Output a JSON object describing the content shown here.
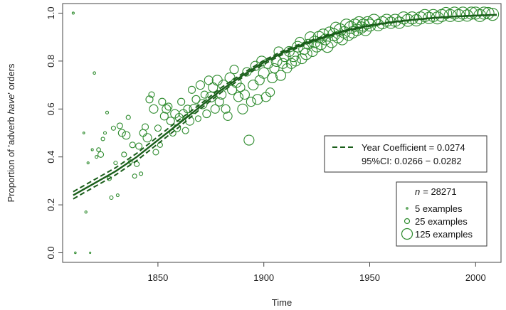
{
  "chart_data": {
    "type": "scatter",
    "xlabel": "Time",
    "ylabel_parts": [
      "Proportion of 'adverb ",
      "have",
      "' orders"
    ],
    "xlim": [
      1805,
      2012
    ],
    "ylim": [
      -0.04,
      1.04
    ],
    "xticks": [
      1850,
      1900,
      1950,
      2000
    ],
    "yticks": [
      0.0,
      0.2,
      0.4,
      0.6,
      0.8,
      1.0
    ],
    "ytick_labels": [
      "0.0",
      "0.2",
      "0.4",
      "0.6",
      "0.8",
      "1.0"
    ],
    "grid": false,
    "color": "#2e8b2e",
    "fit_color": "#1a5e1a",
    "fit": {
      "name": "fit",
      "x": [
        1810,
        1820,
        1830,
        1840,
        1850,
        1860,
        1870,
        1880,
        1890,
        1900,
        1910,
        1920,
        1930,
        1940,
        1950,
        1960,
        1970,
        1980,
        1990,
        2000,
        2010
      ],
      "y": [
        0.24,
        0.29,
        0.34,
        0.4,
        0.47,
        0.54,
        0.61,
        0.68,
        0.74,
        0.795,
        0.84,
        0.875,
        0.905,
        0.93,
        0.948,
        0.962,
        0.972,
        0.98,
        0.986,
        0.99,
        0.993
      ],
      "lower": [
        0.225,
        0.275,
        0.325,
        0.385,
        0.455,
        0.525,
        0.6,
        0.67,
        0.732,
        0.787,
        0.833,
        0.87,
        0.901,
        0.927,
        0.946,
        0.96,
        0.971,
        0.979,
        0.985,
        0.989,
        0.992
      ],
      "upper": [
        0.255,
        0.305,
        0.355,
        0.415,
        0.485,
        0.555,
        0.62,
        0.69,
        0.748,
        0.803,
        0.847,
        0.88,
        0.909,
        0.933,
        0.95,
        0.964,
        0.973,
        0.981,
        0.987,
        0.991,
        0.994
      ]
    },
    "legend_fit": {
      "label": "Year Coefficient = 0.0274",
      "ci": "95%CI:  0.0266 − 0.0282"
    },
    "legend_size": {
      "n_label": "n",
      "n_value": "=  28271",
      "items": [
        {
          "label": "5 examples",
          "r": 1.2
        },
        {
          "label": "25 examples",
          "r": 3.5
        },
        {
          "label": "125 examples",
          "r": 7.5
        }
      ]
    },
    "points": [
      [
        1810,
        1.0,
        1.5
      ],
      [
        1811,
        0.0,
        1.2
      ],
      [
        1815,
        0.5,
        1.3
      ],
      [
        1816,
        0.17,
        1.6
      ],
      [
        1817,
        0.375,
        1.5
      ],
      [
        1818,
        0.0,
        1.0
      ],
      [
        1819,
        0.43,
        1.5
      ],
      [
        1820,
        0.75,
        1.8
      ],
      [
        1821,
        0.4,
        2.0
      ],
      [
        1822,
        0.43,
        2.8
      ],
      [
        1823,
        0.41,
        4.0
      ],
      [
        1824,
        0.475,
        2.5
      ],
      [
        1825,
        0.5,
        2.0
      ],
      [
        1826,
        0.585,
        2.0
      ],
      [
        1827,
        0.31,
        3.0
      ],
      [
        1828,
        0.23,
        2.5
      ],
      [
        1829,
        0.52,
        3.0
      ],
      [
        1830,
        0.375,
        2.5
      ],
      [
        1831,
        0.24,
        2.0
      ],
      [
        1832,
        0.53,
        4.0
      ],
      [
        1833,
        0.5,
        5.0
      ],
      [
        1834,
        0.41,
        3.5
      ],
      [
        1835,
        0.49,
        5.5
      ],
      [
        1836,
        0.565,
        3.0
      ],
      [
        1837,
        0.38,
        2.8
      ],
      [
        1838,
        0.45,
        4.0
      ],
      [
        1839,
        0.32,
        3.0
      ],
      [
        1840,
        0.37,
        3.5
      ],
      [
        1841,
        0.445,
        4.5
      ],
      [
        1842,
        0.33,
        2.5
      ],
      [
        1843,
        0.5,
        5.0
      ],
      [
        1844,
        0.525,
        4.5
      ],
      [
        1845,
        0.48,
        6.0
      ],
      [
        1846,
        0.64,
        5.0
      ],
      [
        1847,
        0.66,
        4.0
      ],
      [
        1848,
        0.6,
        6.0
      ],
      [
        1849,
        0.42,
        4.0
      ],
      [
        1850,
        0.52,
        4.5
      ],
      [
        1851,
        0.45,
        3.5
      ],
      [
        1852,
        0.63,
        5.0
      ],
      [
        1853,
        0.57,
        5.5
      ],
      [
        1854,
        0.6,
        6.0
      ],
      [
        1855,
        0.61,
        5.0
      ],
      [
        1856,
        0.55,
        5.5
      ],
      [
        1857,
        0.5,
        4.5
      ],
      [
        1858,
        0.58,
        6.0
      ],
      [
        1859,
        0.52,
        5.0
      ],
      [
        1860,
        0.565,
        5.5
      ],
      [
        1861,
        0.63,
        5.0
      ],
      [
        1862,
        0.58,
        6.0
      ],
      [
        1863,
        0.51,
        4.5
      ],
      [
        1864,
        0.6,
        5.5
      ],
      [
        1865,
        0.55,
        6.0
      ],
      [
        1866,
        0.68,
        5.0
      ],
      [
        1867,
        0.6,
        6.5
      ],
      [
        1868,
        0.64,
        5.5
      ],
      [
        1869,
        0.56,
        4.0
      ],
      [
        1870,
        0.7,
        6.0
      ],
      [
        1871,
        0.62,
        6.5
      ],
      [
        1872,
        0.66,
        5.0
      ],
      [
        1873,
        0.58,
        5.5
      ],
      [
        1874,
        0.72,
        6.0
      ],
      [
        1875,
        0.65,
        7.0
      ],
      [
        1876,
        0.69,
        6.5
      ],
      [
        1877,
        0.6,
        6.0
      ],
      [
        1878,
        0.72,
        7.0
      ],
      [
        1879,
        0.63,
        6.0
      ],
      [
        1880,
        0.66,
        6.5
      ],
      [
        1881,
        0.7,
        7.0
      ],
      [
        1882,
        0.6,
        6.0
      ],
      [
        1883,
        0.57,
        6.0
      ],
      [
        1884,
        0.73,
        7.0
      ],
      [
        1885,
        0.68,
        6.5
      ],
      [
        1886,
        0.765,
        6.0
      ],
      [
        1887,
        0.71,
        7.0
      ],
      [
        1888,
        0.65,
        6.5
      ],
      [
        1889,
        0.69,
        6.0
      ],
      [
        1890,
        0.6,
        7.0
      ],
      [
        1891,
        0.66,
        6.5
      ],
      [
        1892,
        0.755,
        6.0
      ],
      [
        1893,
        0.47,
        7.0
      ],
      [
        1894,
        0.63,
        6.5
      ],
      [
        1895,
        0.7,
        7.0
      ],
      [
        1896,
        0.78,
        6.5
      ],
      [
        1897,
        0.64,
        7.0
      ],
      [
        1898,
        0.72,
        6.5
      ],
      [
        1899,
        0.8,
        7.0
      ],
      [
        1900,
        0.75,
        7.5
      ],
      [
        1901,
        0.65,
        6.5
      ],
      [
        1902,
        0.79,
        7.0
      ],
      [
        1903,
        0.67,
        6.0
      ],
      [
        1904,
        0.73,
        7.0
      ],
      [
        1905,
        0.77,
        6.5
      ],
      [
        1906,
        0.8,
        7.5
      ],
      [
        1907,
        0.84,
        6.5
      ],
      [
        1908,
        0.74,
        7.0
      ],
      [
        1909,
        0.79,
        7.0
      ],
      [
        1910,
        0.82,
        7.5
      ],
      [
        1911,
        0.77,
        6.5
      ],
      [
        1912,
        0.84,
        7.0
      ],
      [
        1913,
        0.79,
        7.0
      ],
      [
        1914,
        0.82,
        7.5
      ],
      [
        1915,
        0.8,
        7.0
      ],
      [
        1916,
        0.86,
        7.5
      ],
      [
        1917,
        0.88,
        6.5
      ],
      [
        1918,
        0.81,
        7.0
      ],
      [
        1919,
        0.85,
        7.5
      ],
      [
        1920,
        0.83,
        8.0
      ],
      [
        1921,
        0.87,
        7.0
      ],
      [
        1922,
        0.9,
        7.5
      ],
      [
        1923,
        0.84,
        7.0
      ],
      [
        1924,
        0.88,
        8.0
      ],
      [
        1925,
        0.86,
        7.5
      ],
      [
        1926,
        0.9,
        8.0
      ],
      [
        1927,
        0.87,
        7.5
      ],
      [
        1928,
        0.91,
        8.0
      ],
      [
        1929,
        0.89,
        7.5
      ],
      [
        1930,
        0.86,
        8.0
      ],
      [
        1931,
        0.92,
        7.5
      ],
      [
        1932,
        0.88,
        8.0
      ],
      [
        1933,
        0.91,
        8.5
      ],
      [
        1934,
        0.94,
        7.5
      ],
      [
        1935,
        0.9,
        8.0
      ],
      [
        1936,
        0.93,
        8.5
      ],
      [
        1937,
        0.89,
        7.5
      ],
      [
        1938,
        0.92,
        8.0
      ],
      [
        1939,
        0.95,
        8.5
      ],
      [
        1940,
        0.91,
        8.0
      ],
      [
        1941,
        0.94,
        8.5
      ],
      [
        1942,
        0.92,
        8.0
      ],
      [
        1943,
        0.95,
        8.5
      ],
      [
        1944,
        0.93,
        8.0
      ],
      [
        1945,
        0.96,
        8.5
      ],
      [
        1946,
        0.94,
        8.0
      ],
      [
        1947,
        0.95,
        8.5
      ],
      [
        1948,
        0.93,
        8.0
      ],
      [
        1949,
        0.96,
        8.5
      ],
      [
        1950,
        0.95,
        8.5
      ],
      [
        1952,
        0.97,
        8.5
      ],
      [
        1954,
        0.95,
        8.0
      ],
      [
        1956,
        0.96,
        8.5
      ],
      [
        1958,
        0.97,
        8.5
      ],
      [
        1960,
        0.96,
        8.0
      ],
      [
        1962,
        0.97,
        8.5
      ],
      [
        1964,
        0.96,
        8.0
      ],
      [
        1966,
        0.98,
        8.5
      ],
      [
        1968,
        0.97,
        8.5
      ],
      [
        1970,
        0.98,
        8.5
      ],
      [
        1972,
        0.97,
        8.0
      ],
      [
        1974,
        0.98,
        8.5
      ],
      [
        1976,
        0.99,
        8.5
      ],
      [
        1978,
        0.98,
        8.0
      ],
      [
        1980,
        0.99,
        8.5
      ],
      [
        1982,
        0.98,
        8.5
      ],
      [
        1984,
        0.99,
        8.5
      ],
      [
        1986,
        1.0,
        8.0
      ],
      [
        1988,
        0.99,
        8.5
      ],
      [
        1990,
        1.0,
        8.5
      ],
      [
        1992,
        0.99,
        8.5
      ],
      [
        1994,
        1.0,
        8.5
      ],
      [
        1996,
        0.99,
        8.0
      ],
      [
        1998,
        1.0,
        8.5
      ],
      [
        2000,
        1.0,
        8.5
      ],
      [
        2002,
        0.99,
        8.5
      ],
      [
        2004,
        1.0,
        8.5
      ],
      [
        2006,
        1.0,
        8.0
      ],
      [
        2008,
        0.995,
        8.5
      ]
    ]
  }
}
